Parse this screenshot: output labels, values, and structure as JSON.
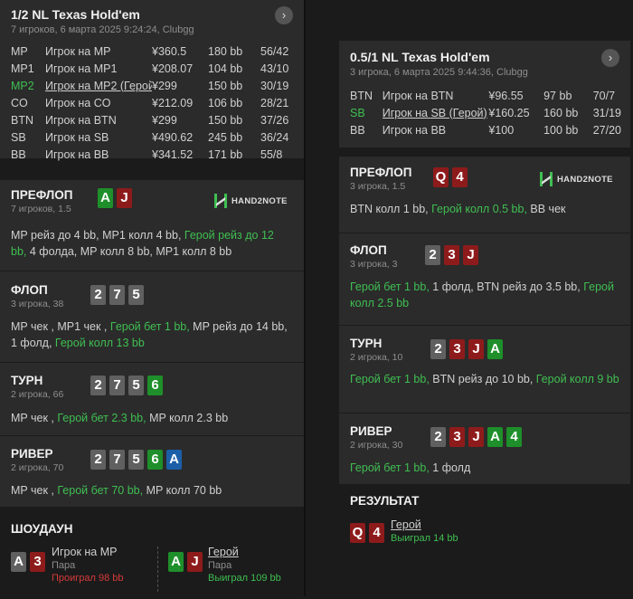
{
  "left": {
    "title": "1/2 NL Texas Hold'em",
    "subtitle": "7 игроков, 6 марта 2025 9:24:24, Clubgg",
    "players": [
      {
        "pos": "MP",
        "name": "Игрок на MP",
        "stack": "¥360.5",
        "bb": "180 bb",
        "stat": "56/42"
      },
      {
        "pos": "MP1",
        "name": "Игрок на MP1",
        "stack": "¥208.07",
        "bb": "104 bb",
        "stat": "43/10"
      },
      {
        "pos": "MP2",
        "name": "Игрок на MP2 (Герой)",
        "stack": "¥299",
        "bb": "150 bb",
        "stat": "30/19"
      },
      {
        "pos": "CO",
        "name": "Игрок на CO",
        "stack": "¥212.09",
        "bb": "106 bb",
        "stat": "28/21"
      },
      {
        "pos": "BTN",
        "name": "Игрок на BTN",
        "stack": "¥299",
        "bb": "150 bb",
        "stat": "37/26"
      },
      {
        "pos": "SB",
        "name": "Игрок на SB",
        "stack": "¥490.62",
        "bb": "245 bb",
        "stat": "36/24"
      },
      {
        "pos": "BB",
        "name": "Игрок на BB",
        "stack": "¥341.52",
        "bb": "171 bb",
        "stat": "55/8"
      }
    ],
    "preflop": {
      "title": "ПРЕФЛОП",
      "sub": "7 игроков, 1.5",
      "cards": [
        "A",
        "J"
      ],
      "a1": "MP рейз до 4 bb, ",
      "a2": "MP1 колл 4 bb, ",
      "a3": "Герой рейз до 12 bb,",
      "a4": " 4 фолда, MP колл 8 bb, MP1 колл 8 bb"
    },
    "flop": {
      "title": "ФЛОП",
      "sub": "3 игрока, 38",
      "cards": [
        "2",
        "7",
        "5"
      ],
      "a1": "MP чек , MP1 чек , ",
      "a2": "Герой бет 1 bb,",
      "a3": " MP рейз до 14 bb, 1 фолд, ",
      "a4": "Герой колл 13 bb"
    },
    "turn": {
      "title": "ТУРН",
      "sub": "2 игрока, 66",
      "cards": [
        "2",
        "7",
        "5",
        "6"
      ],
      "a1": "MP чек , ",
      "a2": "Герой бет 2.3 bb,",
      "a3": " MP колл 2.3 bb"
    },
    "river": {
      "title": "РИВЕР",
      "sub": "2 игрока, 70",
      "cards": [
        "2",
        "7",
        "5",
        "6",
        "A"
      ],
      "a1": "MP чек , ",
      "a2": "Герой бет 70 bb,",
      "a3": " MP колл 70 bb"
    },
    "showdown": {
      "title": "ШОУДАУН",
      "p1": {
        "cards": [
          "A",
          "3"
        ],
        "name": "Игрок на MP",
        "hand": "Пара",
        "result": "Проиграл 98 bb"
      },
      "p2": {
        "cards": [
          "A",
          "J"
        ],
        "name": "Герой",
        "hand": "Пара",
        "result": "Выиграл 109 bb"
      }
    }
  },
  "right": {
    "title": "0.5/1 NL Texas Hold'em",
    "subtitle": "3 игрока, 6 марта 2025 9:44:36, Clubgg",
    "players": [
      {
        "pos": "BTN",
        "name": "Игрок на BTN",
        "stack": "¥96.55",
        "bb": "97 bb",
        "stat": "70/7"
      },
      {
        "pos": "SB",
        "name": "Игрок на SB (Герой)",
        "stack": "¥160.25",
        "bb": "160 bb",
        "stat": "31/19"
      },
      {
        "pos": "BB",
        "name": "Игрок на BB",
        "stack": "¥100",
        "bb": "100 bb",
        "stat": "27/20"
      }
    ],
    "preflop": {
      "title": "ПРЕФЛОП",
      "sub": "3 игрока, 1.5",
      "cards": [
        "Q",
        "4"
      ],
      "a1": "BTN колл 1 bb, ",
      "a2": "Герой колл 0.5 bb,",
      "a3": " BB чек"
    },
    "flop": {
      "title": "ФЛОП",
      "sub": "3 игрока, 3",
      "cards": [
        "2",
        "3",
        "J"
      ],
      "a1": "Герой бет 1 bb,",
      "a2": " 1 фолд, BTN рейз до 3.5 bb, ",
      "a3": "Герой колл 2.5 bb"
    },
    "turn": {
      "title": "ТУРН",
      "sub": "2 игрока, 10",
      "cards": [
        "2",
        "3",
        "J",
        "A"
      ],
      "a1": "Герой бет 1 bb,",
      "a2": " BTN рейз до 10 bb, ",
      "a3": "Герой колл 9 bb"
    },
    "river": {
      "title": "РИВЕР",
      "sub": "2 игрока, 30",
      "cards": [
        "2",
        "3",
        "J",
        "A",
        "4"
      ],
      "a1": "Герой бет 1 bb,",
      "a2": " 1 фолд"
    },
    "result": {
      "title": "РЕЗУЛЬТАТ",
      "cards": [
        "Q",
        "4"
      ],
      "name": "Герой",
      "result": "Выиграл 14 bb"
    }
  },
  "logo_text": "HAND2NOTE"
}
